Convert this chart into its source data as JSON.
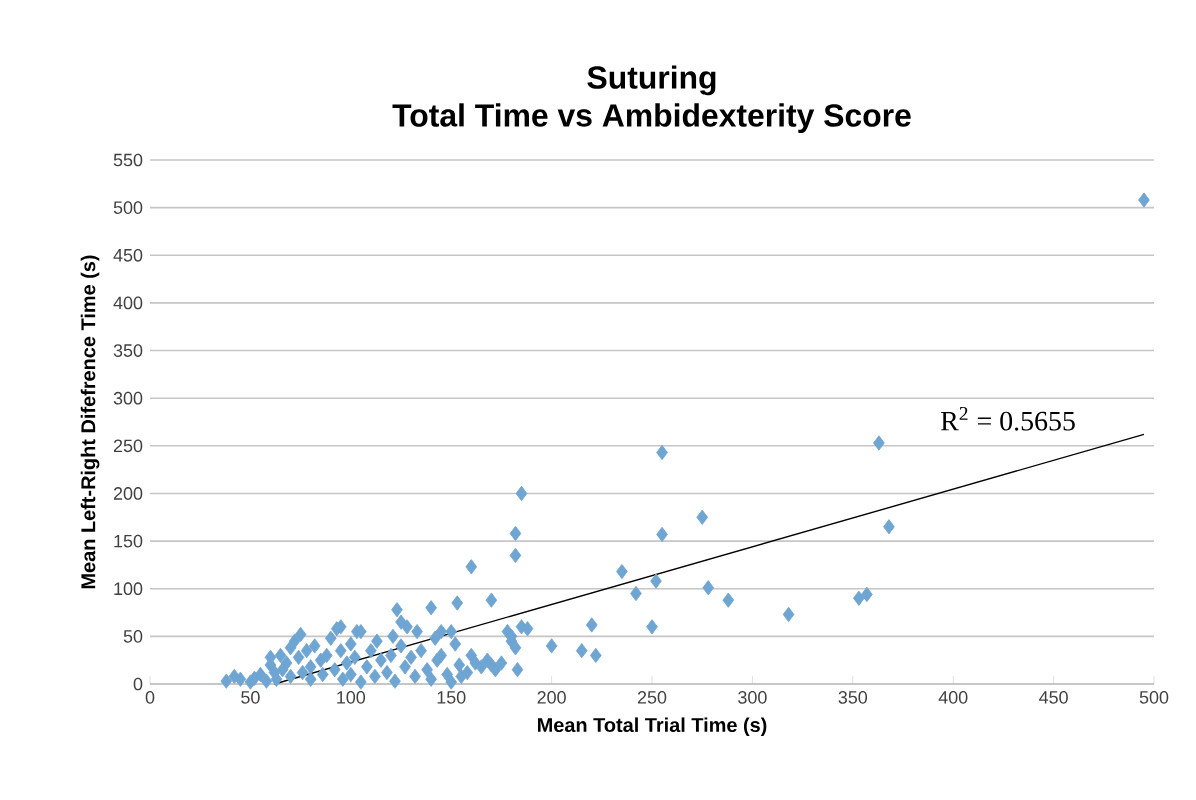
{
  "chart_data": {
    "type": "scatter",
    "title": "Suturing\nTotal Time vs Ambidexterity Score",
    "xlabel": "Mean Total Trial Time (s)",
    "ylabel": "Mean Left-Right Difefrence Time (s)",
    "xlim": [
      0,
      500
    ],
    "xticks": [
      0,
      50,
      100,
      150,
      200,
      250,
      300,
      350,
      400,
      450,
      500
    ],
    "ylim": [
      0,
      550
    ],
    "yticks": [
      0,
      50,
      100,
      150,
      200,
      250,
      300,
      350,
      400,
      450,
      500,
      550
    ],
    "grid": "y",
    "annotations": [
      "R$^{2}$ = 0.5655"
    ],
    "series": [
      {
        "color": "#6fa5d2",
        "marker": "diamond",
        "x": [
          495,
          363,
          368,
          353,
          357,
          318,
          288,
          278,
          275,
          255,
          255,
          252,
          250,
          242,
          235,
          220,
          215,
          222,
          185,
          182,
          182,
          160,
          170,
          153,
          140,
          123,
          185,
          178,
          180,
          200,
          183,
          170,
          150,
          145,
          133,
          125,
          103,
          95,
          75,
          38,
          42,
          45,
          50,
          52,
          55,
          58,
          60,
          60,
          62,
          63,
          65,
          66,
          68,
          70,
          70,
          72,
          74,
          76,
          78,
          80,
          80,
          82,
          85,
          86,
          88,
          90,
          92,
          93,
          95,
          96,
          98,
          100,
          100,
          102,
          105,
          105,
          108,
          110,
          112,
          113,
          115,
          118,
          120,
          121,
          122,
          125,
          127,
          128,
          130,
          132,
          135,
          138,
          140,
          142,
          143,
          145,
          148,
          150,
          152,
          154,
          155,
          158,
          160,
          162,
          165,
          168,
          172,
          175,
          180,
          182,
          188
        ],
        "values": [
          508,
          253,
          165,
          90,
          94,
          73,
          88,
          101,
          175,
          157,
          243,
          108,
          60,
          95,
          118,
          62,
          35,
          30,
          200,
          158,
          135,
          123,
          88,
          85,
          80,
          78,
          60,
          55,
          45,
          40,
          15,
          20,
          55,
          55,
          55,
          65,
          55,
          60,
          52,
          3,
          8,
          5,
          2,
          6,
          10,
          3,
          20,
          28,
          12,
          5,
          30,
          15,
          22,
          8,
          38,
          45,
          28,
          12,
          35,
          18,
          5,
          40,
          25,
          10,
          30,
          48,
          15,
          58,
          35,
          5,
          22,
          42,
          10,
          28,
          55,
          2,
          18,
          35,
          8,
          45,
          25,
          12,
          30,
          50,
          3,
          40,
          18,
          60,
          28,
          8,
          35,
          15,
          5,
          48,
          25,
          30,
          10,
          2,
          42,
          20,
          8,
          12,
          30,
          22,
          18,
          25,
          15,
          22,
          50,
          38,
          58
        ]
      },
      {
        "type": "line",
        "marker": "none",
        "color": "#000000",
        "x": [
          62,
          495
        ],
        "values": [
          0,
          262
        ]
      }
    ]
  }
}
